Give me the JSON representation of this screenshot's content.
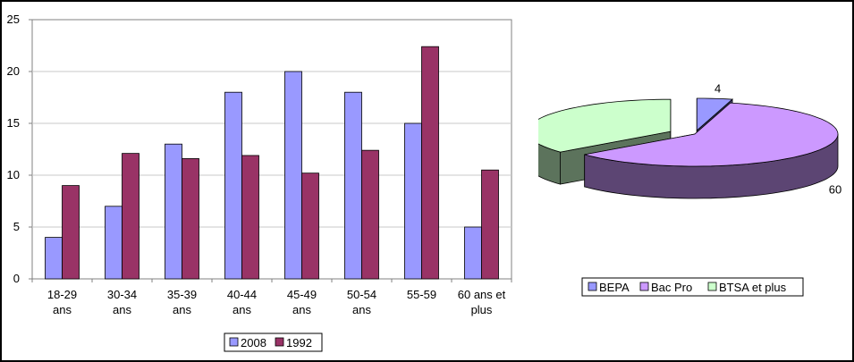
{
  "page": {
    "title": "",
    "title_note": "top title text cut off by the frame; not legible"
  },
  "chart_data": [
    {
      "type": "bar",
      "title": "",
      "xlabel": "",
      "ylabel": "",
      "ylim": [
        0,
        25
      ],
      "yticks": [
        0,
        5,
        10,
        15,
        20,
        25
      ],
      "grid": true,
      "legend_position": "bottom",
      "categories": [
        [
          "18-29",
          "ans"
        ],
        [
          "30-34",
          "ans"
        ],
        [
          "35-39",
          "ans"
        ],
        [
          "40-44",
          "ans"
        ],
        [
          "45-49",
          "ans"
        ],
        [
          "50-54",
          "ans"
        ],
        [
          "55-59"
        ],
        [
          "60 ans et",
          "plus"
        ]
      ],
      "series": [
        {
          "name": "2008",
          "color": "#9999ff",
          "values": [
            4,
            7,
            13,
            18,
            20,
            18,
            15,
            5
          ]
        },
        {
          "name": "1992",
          "color": "#993366",
          "values": [
            9,
            12.1,
            11.6,
            11.9,
            10.2,
            12.4,
            22.4,
            10.5
          ]
        }
      ]
    },
    {
      "type": "pie",
      "title": "",
      "style": "3d-exploded",
      "legend_position": "bottom",
      "slices": [
        {
          "label": "BEPA",
          "value": 4,
          "color": "#9999ff"
        },
        {
          "label": "Bac Pro",
          "value": 60,
          "color": "#cc99ff"
        },
        {
          "label": "BTSA et plus",
          "value": 36,
          "color": "#ccffcc"
        }
      ]
    }
  ]
}
